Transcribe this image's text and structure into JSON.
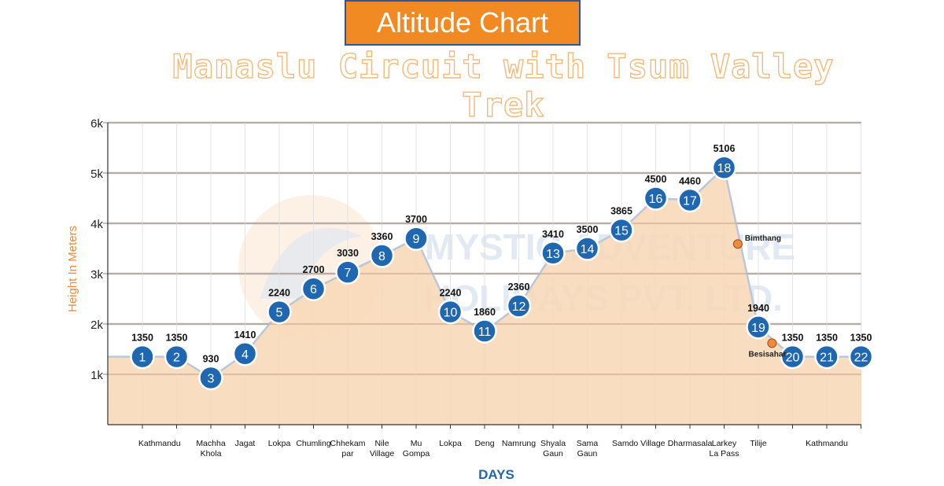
{
  "header": {
    "badge": "Altitude Chart",
    "subtitle": "Manaslu Circuit with Tsum Valley Trek"
  },
  "watermark": {
    "line1": "MYSTIC ADVENTURE",
    "line2": "HOLIDAYS PVT. LTD."
  },
  "colors": {
    "badge_bg": "#f18a22",
    "badge_border": "#2f5597",
    "area_fill": "#f8d7b6",
    "marker": "#1f67b1",
    "axis_label": "#f08a3c",
    "days_label": "#1f67b1",
    "extra_marker": "#f08a3c"
  },
  "chart_data": {
    "type": "area",
    "ylabel": "Height In Meters",
    "xlabel": "DAYS",
    "ylim": [
      0,
      6000
    ],
    "y_ticks": [
      {
        "value": 1000,
        "label": "1k"
      },
      {
        "value": 2000,
        "label": "2k"
      },
      {
        "value": 3000,
        "label": "3k"
      },
      {
        "value": 4000,
        "label": "4k"
      },
      {
        "value": 5000,
        "label": "5k"
      },
      {
        "value": 6000,
        "label": "6k"
      }
    ],
    "grid": true,
    "points": [
      {
        "day": "1",
        "altitude": 1350
      },
      {
        "day": "2",
        "altitude": 1350
      },
      {
        "day": "3",
        "altitude": 930
      },
      {
        "day": "4",
        "altitude": 1410
      },
      {
        "day": "5",
        "altitude": 2240
      },
      {
        "day": "6",
        "altitude": 2700
      },
      {
        "day": "7",
        "altitude": 3030
      },
      {
        "day": "8",
        "altitude": 3360
      },
      {
        "day": "9",
        "altitude": 3700
      },
      {
        "day": "10",
        "altitude": 2240
      },
      {
        "day": "11",
        "altitude": 1860
      },
      {
        "day": "12",
        "altitude": 2360
      },
      {
        "day": "13",
        "altitude": 3410
      },
      {
        "day": "14",
        "altitude": 3500
      },
      {
        "day": "15",
        "altitude": 3865
      },
      {
        "day": "16",
        "altitude": 4500
      },
      {
        "day": "17",
        "altitude": 4460
      },
      {
        "day": "18",
        "altitude": 5106
      },
      {
        "day": "19",
        "altitude": 1940
      },
      {
        "day": "20",
        "altitude": 1350
      },
      {
        "day": "21",
        "altitude": 1350
      },
      {
        "day": "22",
        "altitude": 1350
      }
    ],
    "place_labels": [
      {
        "day": 1.5,
        "lines": [
          "Kathmandu"
        ]
      },
      {
        "day": 3,
        "lines": [
          "Machha",
          "Khola"
        ]
      },
      {
        "day": 4,
        "lines": [
          "Jagat"
        ]
      },
      {
        "day": 5,
        "lines": [
          "Lokpa"
        ]
      },
      {
        "day": 6,
        "lines": [
          "Chumling"
        ]
      },
      {
        "day": 7,
        "lines": [
          "Chhekam",
          "par"
        ]
      },
      {
        "day": 8,
        "lines": [
          "Nile",
          "Village"
        ]
      },
      {
        "day": 9,
        "lines": [
          "Mu",
          "Gompa"
        ]
      },
      {
        "day": 10,
        "lines": [
          "Lokpa"
        ]
      },
      {
        "day": 11,
        "lines": [
          "Deng"
        ]
      },
      {
        "day": 12,
        "lines": [
          "Namrung"
        ]
      },
      {
        "day": 13,
        "lines": [
          "Shyala",
          "Gaun"
        ]
      },
      {
        "day": 14,
        "lines": [
          "Sama",
          "Gaun"
        ]
      },
      {
        "day": 15.5,
        "lines": [
          "Samdo Village"
        ]
      },
      {
        "day": 17,
        "lines": [
          "Dharmasala"
        ]
      },
      {
        "day": 18,
        "lines": [
          "Larkey",
          "La Pass"
        ]
      },
      {
        "day": 19,
        "lines": [
          "Tilije"
        ]
      },
      {
        "day": 21,
        "lines": [
          "Kathmandu"
        ]
      }
    ],
    "extra_points": [
      {
        "name": "Bimthang",
        "day": 18.4,
        "altitude": 3590,
        "label_side": "right"
      },
      {
        "name": "Besisahar",
        "day": 19.4,
        "altitude": 1620,
        "label_side": "left"
      }
    ]
  }
}
